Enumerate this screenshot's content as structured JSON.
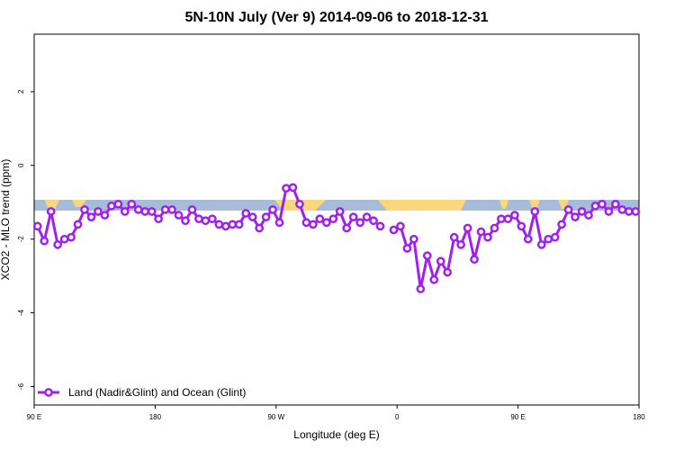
{
  "chart_data": {
    "type": "line",
    "title": "5N-10N July (Ver 9)   2014-09-06 to 2018-12-31",
    "xlabel": "Longitude (deg E)",
    "ylabel": "XCO2 - MLO trend (ppm)",
    "x": [
      92.5,
      97.5,
      102.5,
      107.5,
      112.5,
      117.5,
      122.5,
      127.5,
      132.5,
      137.5,
      142.5,
      147.5,
      152.5,
      157.5,
      162.5,
      167.5,
      172.5,
      177.5,
      182.5,
      187.5,
      192.5,
      197.5,
      202.5,
      207.5,
      212.5,
      217.5,
      222.5,
      227.5,
      232.5,
      237.5,
      242.5,
      247.5,
      252.5,
      257.5,
      262.5,
      267.5,
      272.5,
      277.5,
      282.5,
      287.5,
      292.5,
      297.5,
      302.5,
      307.5,
      312.5,
      317.5,
      322.5,
      327.5,
      332.5,
      337.5,
      342.5,
      347.5,
      352.5,
      357.5,
      362.5,
      367.5,
      372.5,
      377.5,
      382.5,
      387.5,
      392.5,
      397.5,
      402.5,
      407.5,
      412.5,
      417.5,
      422.5,
      427.5,
      432.5,
      437.5,
      442.5,
      447.5,
      452.5,
      457.5,
      462.5,
      467.5,
      472.5,
      477.5,
      482.5,
      487.5,
      492.5,
      497.5,
      502.5,
      507.5,
      512.5,
      517.5,
      522.5,
      527.5,
      532.5,
      537.5
    ],
    "series": [
      {
        "name": "Land (Nadir&Glint) and Ocean (Glint)",
        "color": "#a020f0",
        "values": [
          -1.65,
          -2.05,
          -1.25,
          -2.15,
          -2.0,
          -1.95,
          -1.6,
          -1.2,
          -1.4,
          -1.25,
          -1.35,
          -1.1,
          -1.05,
          -1.25,
          -1.05,
          -1.2,
          -1.25,
          -1.25,
          -1.45,
          -1.2,
          -1.2,
          -1.35,
          -1.5,
          -1.2,
          -1.45,
          -1.5,
          -1.45,
          -1.6,
          -1.65,
          -1.6,
          -1.6,
          -1.3,
          -1.4,
          -1.7,
          -1.4,
          -1.2,
          -1.55,
          -0.62,
          -0.6,
          -1.05,
          -1.55,
          -1.6,
          -1.45,
          -1.55,
          -1.45,
          -1.25,
          -1.7,
          -1.4,
          -1.55,
          -1.4,
          -1.5,
          -1.65,
          null,
          -1.75,
          -1.65,
          -2.25,
          -2.0,
          -3.35,
          -2.45,
          -3.1,
          -2.6,
          -2.9,
          -1.95,
          -2.15,
          -1.7,
          -2.55,
          -1.8,
          -1.95,
          -1.7,
          -1.45,
          -1.45,
          -1.35,
          -1.65,
          -2.0,
          -1.25,
          -2.15,
          -2.0,
          -1.95,
          -1.6,
          -1.2,
          -1.4,
          -1.25,
          -1.35,
          -1.1,
          -1.05,
          -1.25,
          -1.05,
          -1.2,
          -1.25,
          -1.25
        ]
      }
    ],
    "xlim": [
      90,
      540
    ],
    "xticks": [
      {
        "value": 90,
        "label": "90 E"
      },
      180,
      {
        "value": 270,
        "label": "90 W"
      },
      {
        "value": 360,
        "label": "0"
      },
      {
        "value": 450,
        "label": "90 E"
      },
      {
        "value": 540,
        "label": "180"
      }
    ],
    "ylim": [
      -6.5,
      3.56
    ],
    "yticks": [
      -6,
      -4,
      -2,
      0,
      2
    ],
    "legend": "bottom-left"
  }
}
